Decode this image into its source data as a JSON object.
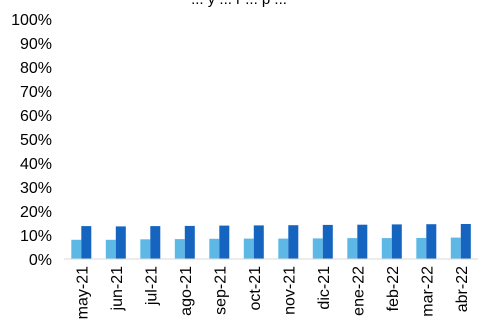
{
  "chart_data": {
    "type": "bar",
    "title": "... y ... r ... p ...",
    "xlabel": "",
    "ylabel": "",
    "ylim": [
      0,
      100
    ],
    "y_unit": "%",
    "y_ticks": [
      "0%",
      "10%",
      "20%",
      "30%",
      "40%",
      "50%",
      "60%",
      "70%",
      "80%",
      "90%",
      "100%"
    ],
    "grid": false,
    "legend": "none",
    "categories": [
      "may-21",
      "jun-21",
      "jul-21",
      "ago-21",
      "sep-21",
      "oct-21",
      "nov-21",
      "dic-21",
      "ene-22",
      "feb-22",
      "mar-22",
      "abr-22"
    ],
    "series": [
      {
        "color": "#5eb8e6",
        "values": [
          8.0,
          8.0,
          8.2,
          8.3,
          8.4,
          8.5,
          8.5,
          8.6,
          8.7,
          8.7,
          8.8,
          8.9
        ]
      },
      {
        "color": "#1565c0",
        "values": [
          13.7,
          13.6,
          13.7,
          13.8,
          13.9,
          14.0,
          14.1,
          14.2,
          14.3,
          14.4,
          14.5,
          14.6
        ]
      }
    ]
  }
}
